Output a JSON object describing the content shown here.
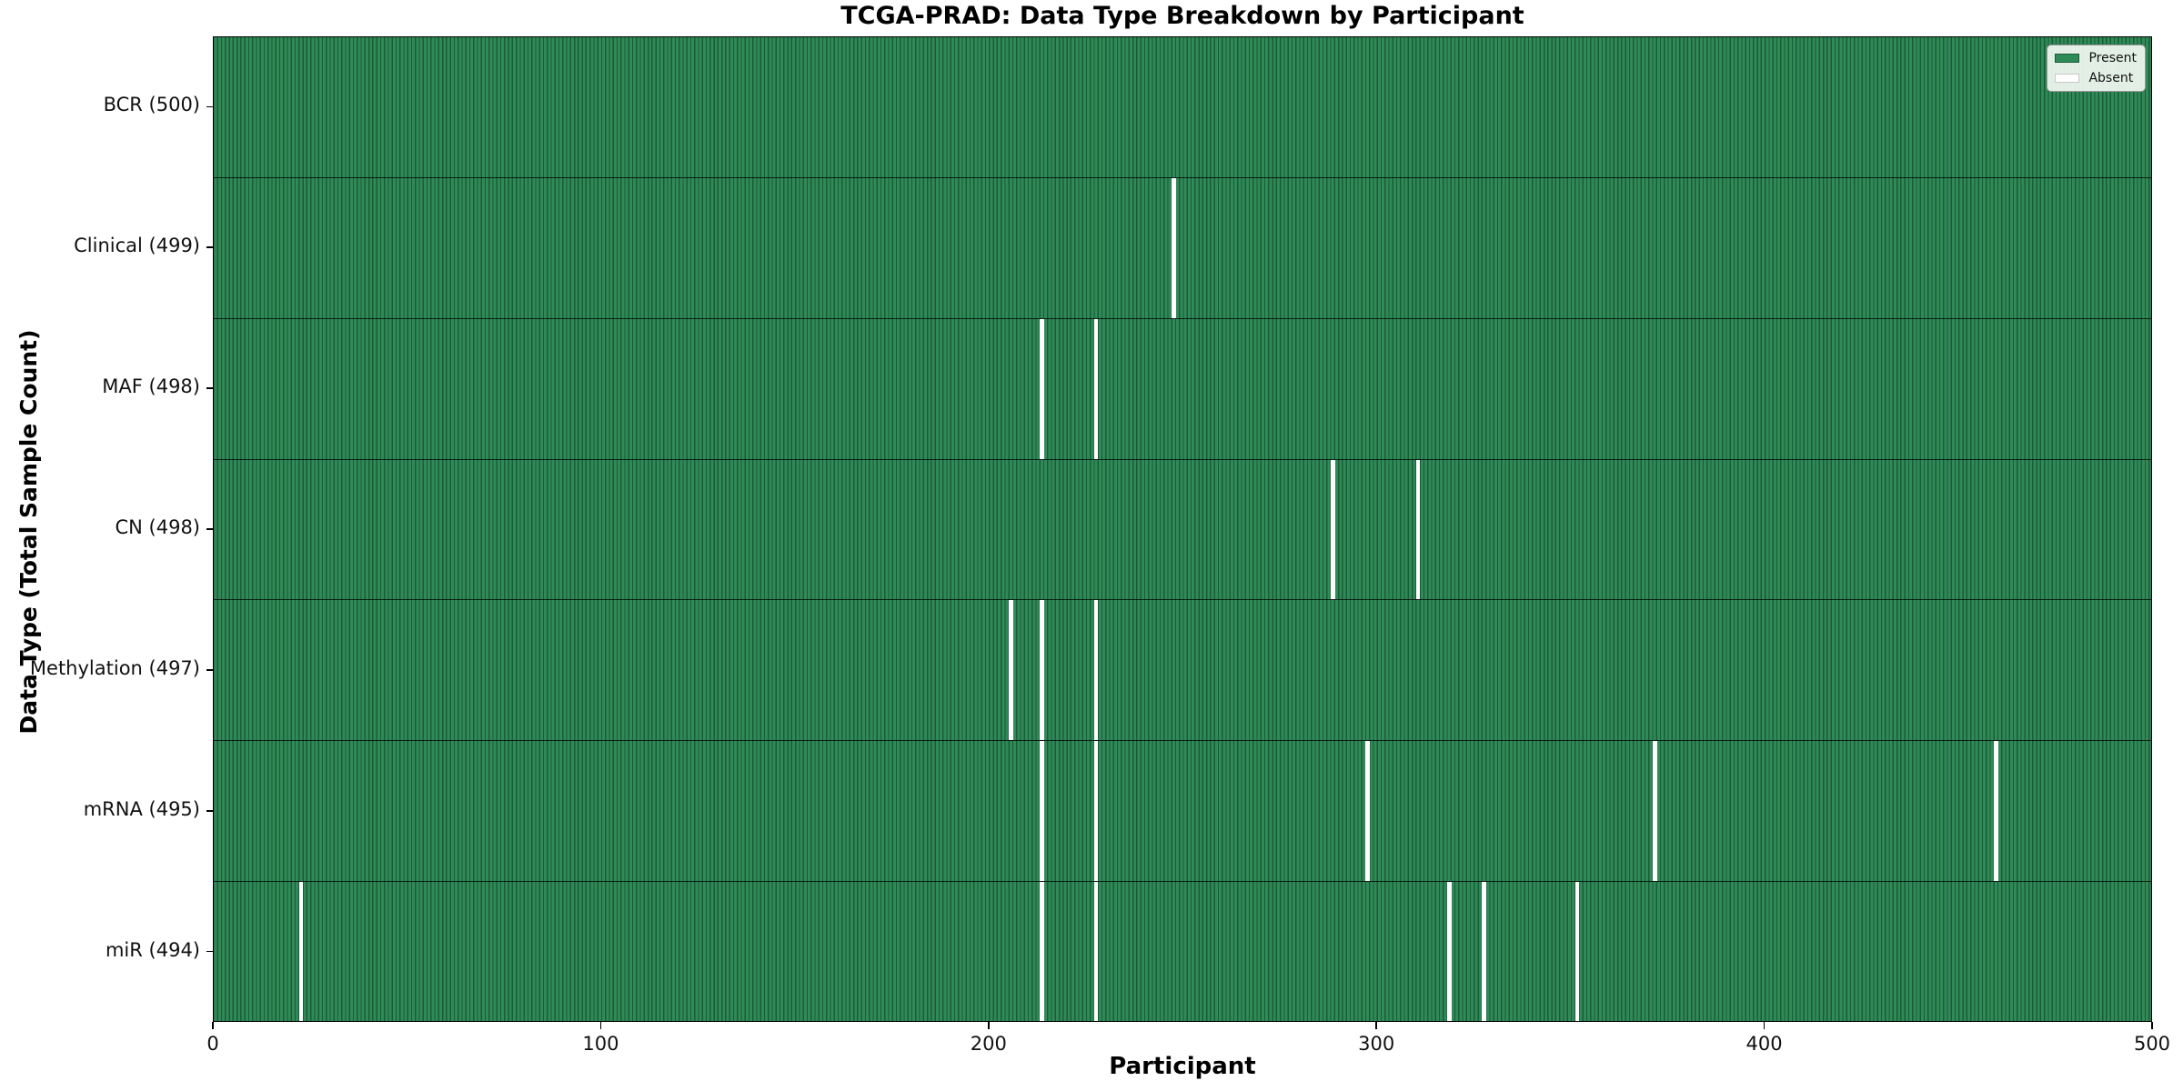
{
  "title": "TCGA-PRAD: Data Type Breakdown by Participant",
  "xlabel": "Participant",
  "ylabel": "Data Type (Total Sample Count)",
  "legend": {
    "present_label": "Present",
    "absent_label": "Absent"
  },
  "colors": {
    "present_fill": "#2E8B57",
    "present_edge": "#1d5a38",
    "absent_fill": "#ffffff",
    "absent_edge": "#c8c8c8",
    "legend_bg": "#f0f5ef",
    "row_divider": "#000000"
  },
  "chart_data": {
    "type": "heatmap",
    "title": "TCGA-PRAD: Data Type Breakdown by Participant",
    "xlabel": "Participant",
    "ylabel": "Data Type (Total Sample Count)",
    "legend_entries": [
      "Present",
      "Absent"
    ],
    "legend_position": "upper right",
    "x_axis": {
      "min": 0,
      "max": 500,
      "ticks": [
        0,
        100,
        200,
        300,
        400,
        500
      ]
    },
    "n_participants": 500,
    "cell_encoding": {
      "present": 1,
      "absent": 0
    },
    "rows": [
      {
        "label": "BCR (500)",
        "data_type": "BCR",
        "present_count": 500,
        "absent_participants": []
      },
      {
        "label": "Clinical (499)",
        "data_type": "Clinical",
        "present_count": 499,
        "absent_participants": [
          247
        ]
      },
      {
        "label": "MAF (498)",
        "data_type": "MAF",
        "present_count": 498,
        "absent_participants": [
          213,
          227
        ]
      },
      {
        "label": "CN (498)",
        "data_type": "CN",
        "present_count": 498,
        "absent_participants": [
          288,
          310
        ]
      },
      {
        "label": "Methylation (497)",
        "data_type": "Methylation",
        "present_count": 497,
        "absent_participants": [
          205,
          213,
          227
        ]
      },
      {
        "label": "mRNA (495)",
        "data_type": "mRNA",
        "present_count": 495,
        "absent_participants": [
          213,
          227,
          297,
          371,
          459
        ]
      },
      {
        "label": "miR (494)",
        "data_type": "miR",
        "present_count": 494,
        "absent_participants": [
          22,
          213,
          227,
          318,
          327,
          351
        ]
      }
    ]
  }
}
